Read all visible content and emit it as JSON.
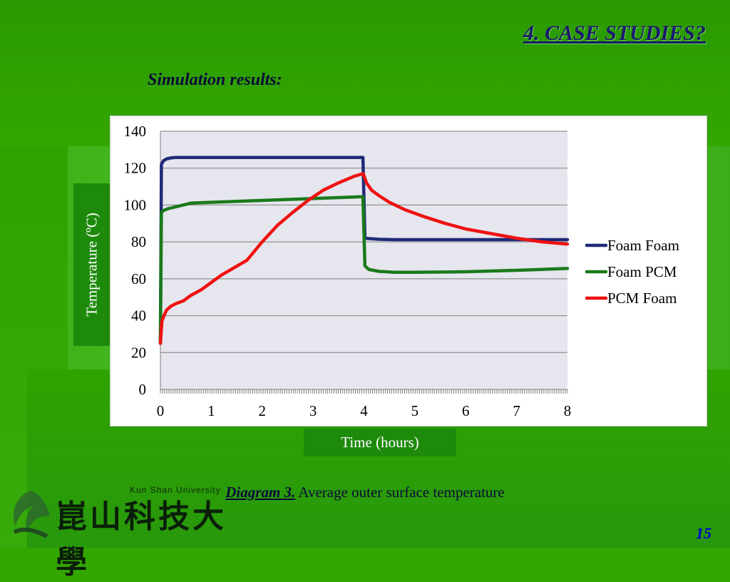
{
  "slide": {
    "title": "4. CASE STUDIES?",
    "subtitle": "Simulation results:",
    "caption_label": "Diagram 3.",
    "caption_text": " Average outer surface temperature",
    "page_number": "15",
    "background_color": "#33a600"
  },
  "logo": {
    "english": "Kun Shan University",
    "chinese": "崑山科技大學",
    "icon": "ksu-logo-icon"
  },
  "chart_data": {
    "type": "line",
    "xlabel": "Time (hours)",
    "ylabel": "Temperature (ºC)",
    "xlim": [
      0,
      8
    ],
    "ylim": [
      0,
      140
    ],
    "x_ticks": [
      0,
      1,
      2,
      3,
      4,
      5,
      6,
      7,
      8
    ],
    "y_ticks": [
      0,
      20,
      40,
      60,
      80,
      100,
      120,
      140
    ],
    "grid": "horizontal",
    "legend": "right",
    "plot_background": "#e6e6ee",
    "series": [
      {
        "name": "Foam Foam",
        "color": "#1f2a78",
        "x": [
          0,
          0.02,
          0.06,
          0.12,
          0.2,
          0.3,
          0.5,
          1,
          2,
          3,
          3.98,
          4.0,
          4.02,
          4.1,
          4.3,
          4.6,
          5,
          6,
          7,
          8
        ],
        "y": [
          25,
          122,
          124,
          125,
          125.5,
          125.8,
          125.8,
          125.8,
          125.8,
          125.8,
          125.8,
          104,
          82,
          81.8,
          81.4,
          81.2,
          81.2,
          81.2,
          81.2,
          81.2
        ]
      },
      {
        "name": "Foam PCM",
        "color": "#1a7a1a",
        "x": [
          0,
          0.02,
          0.06,
          0.15,
          0.3,
          0.6,
          1,
          2,
          3,
          3.98,
          4.0,
          4.02,
          4.1,
          4.3,
          4.6,
          5,
          6,
          7,
          8
        ],
        "y": [
          25,
          96,
          97,
          98,
          99,
          101,
          101.5,
          102.5,
          103.5,
          104.5,
          85,
          67,
          65,
          64,
          63.5,
          63.5,
          63.8,
          64.6,
          65.6
        ]
      },
      {
        "name": "PCM Foam",
        "color": "#ee1111",
        "x": [
          0,
          0.03,
          0.07,
          0.12,
          0.2,
          0.3,
          0.45,
          0.6,
          0.8,
          1.0,
          1.2,
          1.45,
          1.7,
          2.0,
          2.3,
          2.6,
          2.9,
          3.2,
          3.5,
          3.8,
          3.98,
          4.0,
          4.05,
          4.15,
          4.3,
          4.5,
          4.8,
          5.2,
          5.6,
          6,
          6.5,
          7,
          7.5,
          8
        ],
        "y": [
          25,
          37,
          40,
          43,
          45,
          46.5,
          48,
          51,
          54,
          58,
          62,
          66,
          70,
          80,
          89,
          96,
          102.5,
          108,
          112,
          115.5,
          117,
          116,
          112,
          108,
          105,
          101.5,
          97.5,
          93.5,
          90,
          87,
          84.5,
          82,
          80,
          78.8
        ]
      }
    ]
  }
}
